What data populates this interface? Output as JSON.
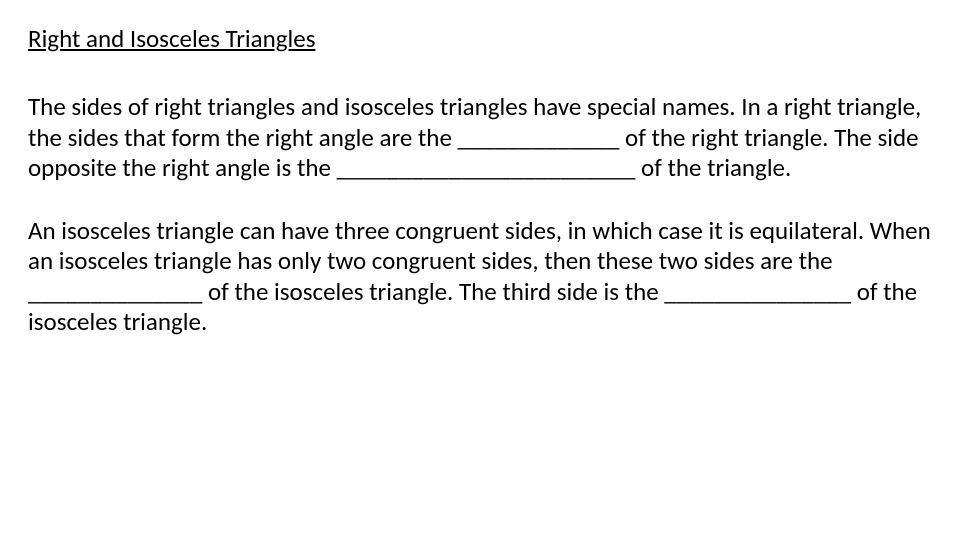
{
  "title": "Right and Isosceles Triangles",
  "paragraph1": "The sides of right triangles and isosceles triangles have special names. In a right triangle, the sides that form the right angle are the _____________ of the right triangle. The side opposite the right angle is the ________________________ of the triangle.",
  "paragraph2": "An isosceles triangle can have three congruent sides, in which case it is equilateral. When an isosceles triangle has only two congruent sides, then these two sides are the ______________ of the isosceles triangle.  The third side is the _______________ of the isosceles triangle.",
  "text_color": "#000000",
  "background_color": "#ffffff",
  "title_fontsize": 25,
  "body_fontsize": 25,
  "font_family": "Calibri, Arial, sans-serif"
}
